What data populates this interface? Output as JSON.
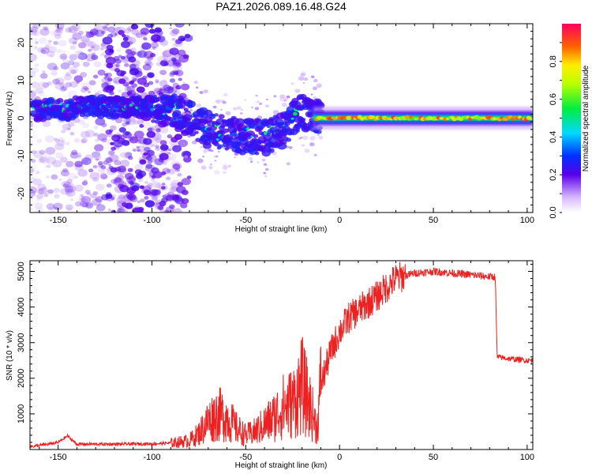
{
  "title": "PAZ1.2026.089.16.48.G24",
  "chart_data": [
    {
      "type": "heatmap",
      "xlabel": "Height of straight line (km)",
      "ylabel": "Frequency (Hz)",
      "xlim": [
        -165,
        103
      ],
      "ylim": [
        -25,
        25
      ],
      "xticks": [
        -150,
        -100,
        -50,
        0,
        50,
        100
      ],
      "yticks": [
        -20,
        -10,
        0,
        10,
        20
      ],
      "colorbar": {
        "label": "Normalized spectral amplitude",
        "range": [
          0,
          1
        ],
        "ticks": [
          "0.0",
          "0.2",
          "0.4",
          "0.6",
          "0.8"
        ],
        "tick_values": [
          0,
          0.2,
          0.4,
          0.6,
          0.8
        ]
      },
      "ridge": {
        "x": [
          -160,
          -150,
          -145,
          -140,
          -100,
          -90,
          -80,
          -70,
          -60,
          -50,
          -40,
          -30,
          -20,
          -15,
          -10,
          0,
          20,
          50,
          100
        ],
        "frequency": [
          2,
          3,
          2,
          3,
          3,
          2,
          0,
          -3,
          -4,
          -5,
          -5,
          -3,
          2,
          1,
          0,
          0,
          0,
          0,
          0
        ]
      }
    },
    {
      "type": "line",
      "xlabel": "Height of straight line (km)",
      "ylabel": "SNR (10 * v/v)",
      "xlim": [
        -165,
        103
      ],
      "ylim": [
        0,
        5300
      ],
      "xticks": [
        -150,
        -100,
        -50,
        0,
        50,
        100
      ],
      "yticks": [
        1000,
        2000,
        3000,
        4000,
        5000
      ],
      "series": [
        {
          "name": "SNR",
          "color": "#ee2020",
          "x": [
            -165,
            -155,
            -150,
            -145,
            -140,
            -120,
            -100,
            -90,
            -80,
            -75,
            -70,
            -65,
            -60,
            -55,
            -50,
            -45,
            -40,
            -35,
            -30,
            -25,
            -20,
            -15,
            -12,
            -10,
            -5,
            0,
            5,
            10,
            20,
            30,
            40,
            50,
            60,
            70,
            80,
            83,
            84,
            90,
            100,
            103
          ],
          "values": [
            80,
            150,
            200,
            380,
            150,
            150,
            160,
            180,
            250,
            450,
            800,
            1000,
            900,
            600,
            400,
            500,
            700,
            900,
            1200,
            1300,
            1800,
            1100,
            600,
            1800,
            2700,
            3300,
            3700,
            3900,
            4300,
            4800,
            4950,
            5000,
            4950,
            4900,
            4850,
            4850,
            2600,
            2550,
            2500,
            2500
          ]
        }
      ]
    }
  ],
  "colors": {
    "line": "#ee2020",
    "background": "#ffffff",
    "axes": "#000000"
  }
}
